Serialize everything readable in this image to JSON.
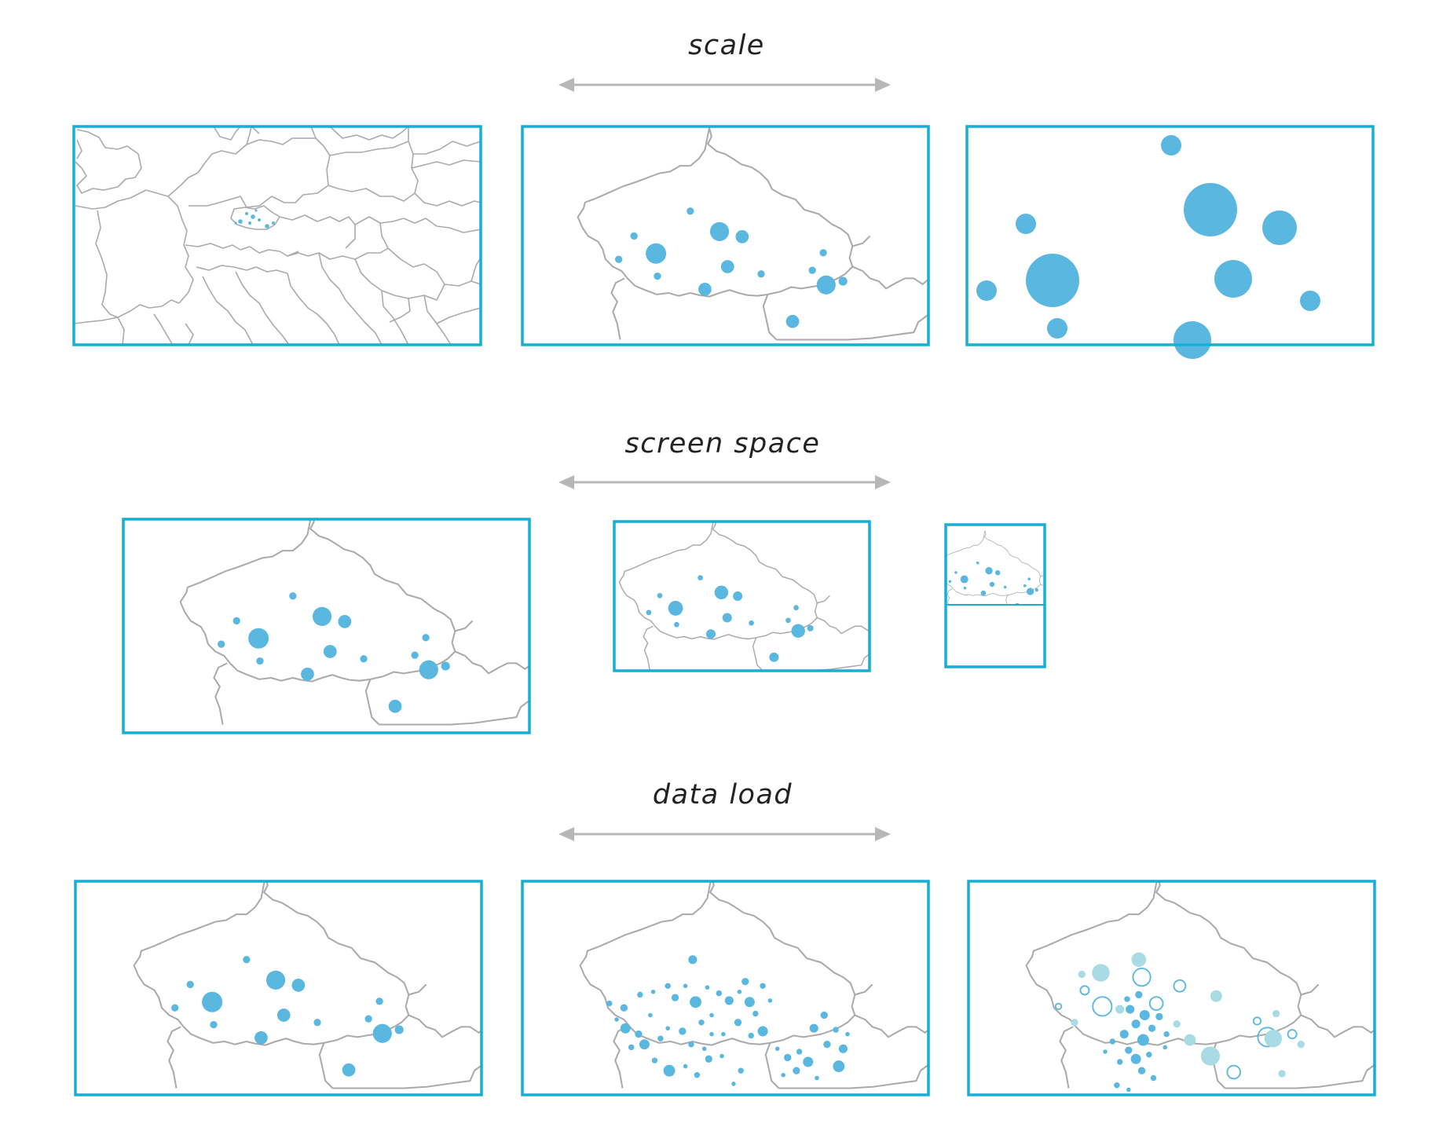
{
  "sections": [
    {
      "id": "scale",
      "title": "scale"
    },
    {
      "id": "screen-space",
      "title": "screen space"
    },
    {
      "id": "data-load",
      "title": "data load"
    }
  ],
  "colors": {
    "frame": "#16aed5",
    "dot": "#5ab7e0",
    "dot_light": "#a8dbe3",
    "border": "#aaaaaa",
    "arrow": "#b7b7b7"
  },
  "icons": [
    "double-arrow-icon"
  ]
}
